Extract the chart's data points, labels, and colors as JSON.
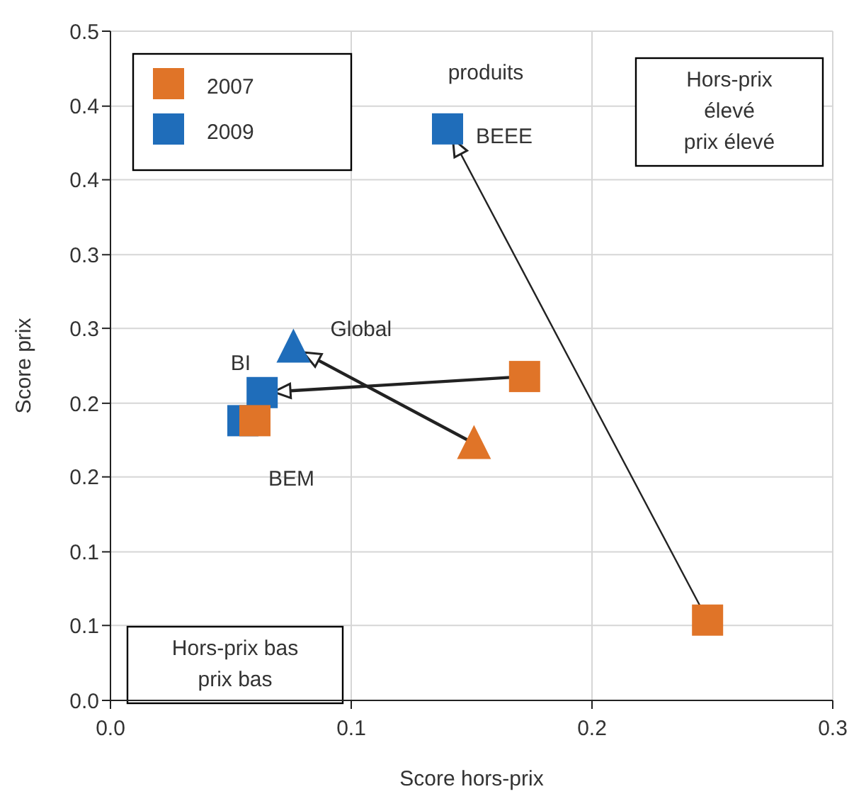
{
  "chart_data": {
    "type": "scatter",
    "xlabel": "Score hors-prix",
    "ylabel": "Score prix",
    "xlim": [
      0,
      0.3
    ],
    "ylim": [
      0,
      0.5
    ],
    "xticks": [
      {
        "value": 0,
        "label": "0.0"
      },
      {
        "value": 0.1,
        "label": "0.1"
      },
      {
        "value": 0.2,
        "label": "0.2"
      },
      {
        "value": 0.3,
        "label": "0.3"
      }
    ],
    "yticks": [
      {
        "value": 0,
        "label": "0.0"
      },
      {
        "value": 0.056,
        "label": "0.1"
      },
      {
        "value": 0.111,
        "label": "0.1"
      },
      {
        "value": 0.167,
        "label": "0.2"
      },
      {
        "value": 0.222,
        "label": "0.2"
      },
      {
        "value": 0.278,
        "label": "0.3"
      },
      {
        "value": 0.333,
        "label": "0.3"
      },
      {
        "value": 0.389,
        "label": "0.4"
      },
      {
        "value": 0.444,
        "label": "0.4"
      },
      {
        "value": 0.5,
        "label": "0.5"
      }
    ],
    "grid": true,
    "legend": "top left",
    "series": [
      {
        "name": "2007",
        "color": "#e07428",
        "marker": "square",
        "x": [
          0.248,
          0.172,
          0.06
        ],
        "values": [
          0.06,
          0.242,
          0.209
        ]
      },
      {
        "name": "2009",
        "color": "#1f6dba",
        "marker": "square",
        "x": [
          0.14,
          0.063,
          0.055
        ],
        "values": [
          0.427,
          0.23,
          0.209
        ]
      },
      {
        "color": "#e07428",
        "marker": "triangle",
        "x": [
          0.151
        ],
        "values": [
          0.192
        ]
      },
      {
        "color": "#1f6dba",
        "marker": "triangle",
        "x": [
          0.076
        ],
        "values": [
          0.264
        ]
      }
    ],
    "annotations": [
      "produits",
      "Hors-prix\nélevé\nprix élevé",
      "Hors-prix bas\nprix bas",
      {
        "text": "BEEE",
        "x": 0.14,
        "y": 0.427
      },
      {
        "text": "Global",
        "x": 0.076,
        "y": 0.264
      },
      {
        "text": "BI",
        "x": 0.063,
        "y": 0.23
      },
      {
        "text": "BEM",
        "x": 0.055,
        "y": 0.209
      }
    ]
  }
}
